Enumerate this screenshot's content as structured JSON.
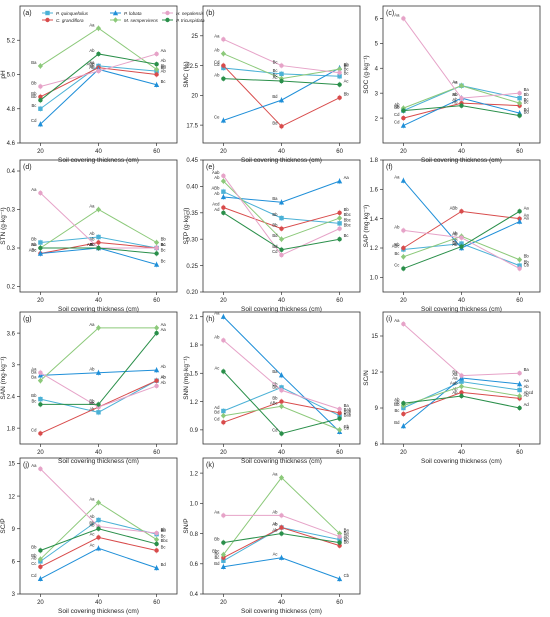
{
  "legend": [
    {
      "name": "P. quinquefolius",
      "color": "#4bb1d6",
      "marker": "square"
    },
    {
      "name": "C. grandiflora",
      "color": "#d84b4b",
      "marker": "circle"
    },
    {
      "name": "P. lobata",
      "color": "#1f8fd8",
      "marker": "triangle"
    },
    {
      "name": "M. sempervirens",
      "color": "#8cc97a",
      "marker": "diamond"
    },
    {
      "name": "H. nepalensis",
      "color": "#e6a3c8",
      "marker": "circle"
    },
    {
      "name": "P. tricuspidata",
      "color": "#2a8f4a",
      "marker": "circle"
    }
  ],
  "chart_data": [
    {
      "panel": "(a)",
      "type": "line",
      "xlabel": "Soil covering thickness (cm)",
      "ylabel": "pH",
      "x": [
        20,
        40,
        60
      ],
      "ylim": [
        4.6,
        5.4
      ],
      "yticks": [
        4.6,
        4.8,
        5.0,
        5.2
      ],
      "series": [
        {
          "name": "P. quinquefolius",
          "values": [
            4.8,
            5.05,
            5.02
          ],
          "labels": [
            "Bc",
            "Aa",
            "Bb"
          ]
        },
        {
          "name": "C. grandiflora",
          "values": [
            4.87,
            5.04,
            5.0
          ],
          "labels": [
            "Bb",
            "ABb",
            "Ab"
          ]
        },
        {
          "name": "P. lobata",
          "values": [
            4.71,
            5.03,
            4.94
          ],
          "labels": [
            "Cd",
            "Ab",
            "Bc"
          ]
        },
        {
          "name": "M. sempervirens",
          "values": [
            5.05,
            5.27,
            5.03
          ],
          "labels": [
            "Ba",
            "Aa",
            "Bb"
          ]
        },
        {
          "name": "H. nepalensis",
          "values": [
            4.93,
            5.02,
            5.12
          ],
          "labels": [
            "Bb",
            "Ab",
            "Aa"
          ]
        },
        {
          "name": "P. tricuspidata",
          "values": [
            4.85,
            5.12,
            5.06
          ],
          "labels": [
            "Bb",
            "Ab",
            "Ab"
          ]
        }
      ]
    },
    {
      "panel": "(b)",
      "type": "line",
      "xlabel": "Soil covering thickness (cm)",
      "ylabel": "SMC (%)",
      "x": [
        20,
        40,
        60
      ],
      "ylim": [
        16,
        27.5
      ],
      "yticks": [
        17.5,
        20.0,
        22.5,
        25.0
      ],
      "series": [
        {
          "name": "P. quinquefolius",
          "values": [
            22.3,
            21.8,
            21.6
          ],
          "labels": [
            "Cd",
            "Bc",
            "Bc"
          ]
        },
        {
          "name": "C. grandiflora",
          "values": [
            22.5,
            17.4,
            19.8
          ],
          "labels": [
            "Cd",
            "Bd",
            "Bb"
          ]
        },
        {
          "name": "P. lobata",
          "values": [
            17.9,
            19.6,
            22.3
          ],
          "labels": [
            "Ce",
            "Bd",
            "Bb"
          ]
        },
        {
          "name": "M. sempervirens",
          "values": [
            23.5,
            21.4,
            22.2
          ],
          "labels": [
            "Ab",
            "Bc",
            "Bc"
          ]
        },
        {
          "name": "H. nepalensis",
          "values": [
            24.7,
            22.5,
            21.9
          ],
          "labels": [
            "Aa",
            "Bc",
            "Bc"
          ]
        },
        {
          "name": "P. tricuspidata",
          "values": [
            21.4,
            21.2,
            20.9
          ],
          "labels": [
            "Ab",
            "Ac",
            "Ac"
          ]
        }
      ]
    },
    {
      "panel": "(c)",
      "type": "line",
      "xlabel": "Soil covering thickness (cm)",
      "ylabel": "SOC (g·kg⁻¹)",
      "x": [
        20,
        40,
        60
      ],
      "ylim": [
        1,
        6.5
      ],
      "yticks": [
        2,
        3,
        4,
        5,
        6
      ],
      "series": [
        {
          "name": "P. quinquefolius",
          "values": [
            2.3,
            3.3,
            2.8
          ],
          "labels": [
            "Bb",
            "Aa",
            "Bb"
          ]
        },
        {
          "name": "C. grandiflora",
          "values": [
            2.0,
            2.6,
            2.5
          ],
          "labels": [
            "Cd",
            "Ab",
            "Bc"
          ]
        },
        {
          "name": "P. lobata",
          "values": [
            1.7,
            2.8,
            2.2
          ],
          "labels": [
            "Cd",
            "Ab",
            "Bd"
          ]
        },
        {
          "name": "M. sempervirens",
          "values": [
            2.4,
            3.3,
            2.6
          ],
          "labels": [
            "Ab",
            "Aa",
            "Bc"
          ]
        },
        {
          "name": "H. nepalensis",
          "values": [
            6.0,
            2.8,
            3.0
          ],
          "labels": [
            "Aa",
            "Bb",
            "Ba"
          ]
        },
        {
          "name": "P. tricuspidata",
          "values": [
            2.3,
            2.5,
            2.1
          ],
          "labels": [
            "Ab",
            "Ab",
            "Bd"
          ]
        }
      ]
    },
    {
      "panel": "(d)",
      "type": "line",
      "xlabel": "Soil covering thickness (cm)",
      "ylabel": "STN (g·kg⁻¹)",
      "x": [
        20,
        40,
        60
      ],
      "ylim": [
        0.2,
        0.44
      ],
      "yticks": [
        0.21,
        0.28,
        0.35,
        0.42
      ],
      "series": [
        {
          "name": "P. quinquefolius",
          "values": [
            0.29,
            0.3,
            0.28
          ],
          "labels": [
            "Bb",
            "Ab",
            "Bc"
          ]
        },
        {
          "name": "C. grandiflora",
          "values": [
            0.27,
            0.29,
            0.28
          ],
          "labels": [
            "ABc",
            "Ab",
            "Bc"
          ]
        },
        {
          "name": "P. lobata",
          "values": [
            0.27,
            0.28,
            0.25
          ],
          "labels": [
            "Bc",
            "Ab",
            "Bc"
          ]
        },
        {
          "name": "M. sempervirens",
          "values": [
            0.28,
            0.35,
            0.29
          ],
          "labels": [
            "Bb",
            "Aa",
            "Bb"
          ]
        },
        {
          "name": "H. nepalensis",
          "values": [
            0.38,
            0.28,
            0.28
          ],
          "labels": [
            "Aa",
            "Bc",
            "Bc"
          ]
        },
        {
          "name": "P. tricuspidata",
          "values": [
            0.28,
            0.28,
            0.27
          ],
          "labels": [
            "Aa",
            "ABc",
            "Bc"
          ]
        }
      ]
    },
    {
      "panel": "(e)",
      "type": "line",
      "xlabel": "Soil covering thickness (cm)",
      "ylabel": "STP (g·kg⁻¹)",
      "x": [
        20,
        40,
        60
      ],
      "ylim": [
        0.2,
        0.45
      ],
      "yticks": [
        0.2,
        0.25,
        0.3,
        0.35,
        0.4,
        0.45
      ],
      "series": [
        {
          "name": "P. quinquefolius",
          "values": [
            0.39,
            0.34,
            0.33
          ],
          "labels": [
            "ABb",
            "Bb",
            "Bbc"
          ]
        },
        {
          "name": "C. grandiflora",
          "values": [
            0.36,
            0.32,
            0.35
          ],
          "labels": [
            "Acd",
            "Bb",
            "Bb"
          ]
        },
        {
          "name": "P. lobata",
          "values": [
            0.38,
            0.37,
            0.41
          ],
          "labels": [
            "Ab",
            "Ba",
            "Aa"
          ]
        },
        {
          "name": "M. sempervirens",
          "values": [
            0.41,
            0.3,
            0.34
          ],
          "labels": [
            "Ab",
            "Bd",
            "Bbc"
          ]
        },
        {
          "name": "H. nepalensis",
          "values": [
            0.42,
            0.27,
            0.32
          ],
          "labels": [
            "Aab",
            "Cd",
            "Bbc"
          ]
        },
        {
          "name": "P. tricuspidata",
          "values": [
            0.35,
            0.28,
            0.3
          ],
          "labels": [
            "Ad",
            "Bd",
            "Bc"
          ]
        }
      ]
    },
    {
      "panel": "(f)",
      "type": "line",
      "xlabel": "Soil covering thickness (cm)",
      "ylabel": "SAP (mg·kg⁻¹)",
      "x": [
        20,
        40,
        60
      ],
      "ylim": [
        0.9,
        1.8
      ],
      "yticks": [
        1.0,
        1.2,
        1.4,
        1.6,
        1.8
      ],
      "series": [
        {
          "name": "P. quinquefolius",
          "values": [
            1.19,
            1.23,
            1.08
          ],
          "labels": [
            "ABc",
            "Bb",
            "Bb"
          ]
        },
        {
          "name": "C. grandiflora",
          "values": [
            1.2,
            1.45,
            1.4
          ],
          "labels": [
            "Bb",
            "ABb",
            "Aa"
          ]
        },
        {
          "name": "P. lobata",
          "values": [
            1.66,
            1.2,
            1.38
          ],
          "labels": [
            "Aa",
            "Ab",
            "Aa"
          ]
        },
        {
          "name": "M. sempervirens",
          "values": [
            1.14,
            1.28,
            1.12
          ],
          "labels": [
            "Bc",
            "Ab",
            "Bb"
          ]
        },
        {
          "name": "H. nepalensis",
          "values": [
            1.32,
            1.27,
            1.06
          ],
          "labels": [
            "Ab",
            "Ab",
            "Cb"
          ]
        },
        {
          "name": "P. tricuspidata",
          "values": [
            1.06,
            1.21,
            1.45
          ],
          "labels": [
            "Cc",
            "Bb",
            "Aa"
          ]
        }
      ]
    },
    {
      "panel": "(g)",
      "type": "line",
      "xlabel": "Soil covering thickness (cm)",
      "ylabel": "SAN (mg·kg⁻¹)",
      "x": [
        20,
        40,
        60
      ],
      "ylim": [
        1.5,
        4.0
      ],
      "yticks": [
        1.8,
        2.4,
        3.0,
        3.6
      ],
      "series": [
        {
          "name": "P. quinquefolius",
          "values": [
            2.35,
            2.1,
            2.7
          ],
          "labels": [
            "Bb",
            "Ab",
            "Ab"
          ]
        },
        {
          "name": "C. grandiflora",
          "values": [
            1.7,
            2.2,
            2.7
          ],
          "labels": [
            "Cd",
            "Bb",
            "Ab"
          ]
        },
        {
          "name": "P. lobata",
          "values": [
            2.8,
            2.85,
            2.9
          ],
          "labels": [
            "Ba",
            "Ab",
            "Ab"
          ]
        },
        {
          "name": "M. sempervirens",
          "values": [
            2.7,
            3.7,
            3.7
          ],
          "labels": [
            "Ba",
            "Aa",
            "Aa"
          ]
        },
        {
          "name": "H. nepalensis",
          "values": [
            2.85,
            2.2,
            2.6
          ],
          "labels": [
            "Aa",
            "Bb",
            "Ab"
          ]
        },
        {
          "name": "P. tricuspidata",
          "values": [
            2.25,
            2.25,
            3.6
          ],
          "labels": [
            "Bc",
            "Bb",
            "Aa"
          ]
        }
      ]
    },
    {
      "panel": "(h)",
      "type": "line",
      "xlabel": "Soil covering thickness (cm)",
      "ylabel": "SNN (mg·kg⁻¹)",
      "x": [
        20,
        40,
        60
      ],
      "ylim": [
        0.75,
        2.15
      ],
      "yticks": [
        0.9,
        1.2,
        1.5,
        1.8,
        2.1
      ],
      "series": [
        {
          "name": "P. quinquefolius",
          "values": [
            1.1,
            1.35,
            1.05
          ],
          "labels": [
            "Ad",
            "Bb",
            "Bab"
          ]
        },
        {
          "name": "C. grandiflora",
          "values": [
            0.98,
            1.2,
            1.08
          ],
          "labels": [
            "Cd",
            "Bb",
            "Bab"
          ]
        },
        {
          "name": "P. lobata",
          "values": [
            2.1,
            1.48,
            0.88
          ],
          "labels": [
            "Aa",
            "Ba",
            "Cb"
          ]
        },
        {
          "name": "M. sempervirens",
          "values": [
            1.05,
            1.15,
            0.9
          ],
          "labels": [
            "Bd",
            "ABc",
            "Cb"
          ]
        },
        {
          "name": "H. nepalensis",
          "values": [
            1.85,
            1.32,
            1.12
          ],
          "labels": [
            "Ab",
            "Bb",
            "Ba"
          ]
        },
        {
          "name": "P. tricuspidata",
          "values": [
            1.52,
            0.86,
            1.02
          ],
          "labels": [
            "Ac",
            "Cd",
            "Bab"
          ]
        }
      ]
    },
    {
      "panel": "(i)",
      "type": "line",
      "xlabel": "Soil covering thickness (cm)",
      "ylabel": "SC/N",
      "x": [
        20,
        40,
        60
      ],
      "ylim": [
        6,
        17
      ],
      "yticks": [
        6,
        9,
        12,
        15
      ],
      "series": [
        {
          "name": "P. quinquefolius",
          "values": [
            9.0,
            11.2,
            10.5
          ],
          "labels": [
            "Bb",
            "Aa",
            "Ab"
          ]
        },
        {
          "name": "C. grandiflora",
          "values": [
            8.5,
            10.3,
            9.8
          ],
          "labels": [
            "Bc",
            "Ab",
            "Ab"
          ]
        },
        {
          "name": "P. lobata",
          "values": [
            7.5,
            11.5,
            11.0
          ],
          "labels": [
            "Bd",
            "Aa",
            "Aa"
          ]
        },
        {
          "name": "M. sempervirens",
          "values": [
            9.2,
            10.8,
            10.0
          ],
          "labels": [
            "Ab",
            "Aab",
            "Abcd"
          ]
        },
        {
          "name": "H. nepalensis",
          "values": [
            16.0,
            11.7,
            11.9
          ],
          "labels": [
            "Aa",
            "Ba",
            "Ba"
          ]
        },
        {
          "name": "P. tricuspidata",
          "values": [
            9.4,
            10.0,
            9.0
          ],
          "labels": [
            "Ab",
            "Ab",
            "Ad"
          ]
        }
      ]
    },
    {
      "panel": "(j)",
      "type": "line",
      "xlabel": "Soil covering thickness (cm)",
      "ylabel": "SC/P",
      "x": [
        20,
        40,
        60
      ],
      "ylim": [
        3,
        15.5
      ],
      "yticks": [
        3,
        6,
        9,
        12,
        15
      ],
      "series": [
        {
          "name": "P. quinquefolius",
          "values": [
            6.0,
            9.8,
            8.5
          ],
          "labels": [
            "Ab",
            "Ab",
            "Bb"
          ]
        },
        {
          "name": "C. grandiflora",
          "values": [
            5.5,
            8.2,
            7.0
          ],
          "labels": [
            "Cc",
            "Ac",
            "Bc"
          ]
        },
        {
          "name": "P. lobata",
          "values": [
            4.4,
            7.2,
            5.4
          ],
          "labels": [
            "Cd",
            "Ac",
            "Bd"
          ]
        },
        {
          "name": "M. sempervirens",
          "values": [
            6.2,
            11.4,
            8.0
          ],
          "labels": [
            "Bb",
            "Aa",
            "Bc"
          ]
        },
        {
          "name": "H. nepalensis",
          "values": [
            14.5,
            9.2,
            8.6
          ],
          "labels": [
            "Aa",
            "Bb",
            "Bb"
          ]
        },
        {
          "name": "P. tricuspidata",
          "values": [
            7.0,
            9.0,
            7.6
          ],
          "labels": [
            "Bb",
            "Ab",
            "Bbc"
          ]
        }
      ]
    },
    {
      "panel": "(k)",
      "type": "line",
      "xlabel": "Soil covering thickness (cm)",
      "ylabel": "SN/P",
      "x": [
        20,
        40,
        60
      ],
      "ylim": [
        0.4,
        1.3
      ],
      "yticks": [
        0.4,
        0.6,
        0.8,
        1.0,
        1.2
      ],
      "series": [
        {
          "name": "P. quinquefolius",
          "values": [
            0.62,
            0.84,
            0.76
          ],
          "labels": [
            "Bc",
            "Ab",
            "Ab"
          ]
        },
        {
          "name": "C. grandiflora",
          "values": [
            0.64,
            0.84,
            0.72
          ],
          "labels": [
            "Bc",
            "Ab",
            "Bb"
          ]
        },
        {
          "name": "P. lobata",
          "values": [
            0.58,
            0.64,
            0.5
          ],
          "labels": [
            "Bd",
            "Ac",
            "Cb"
          ]
        },
        {
          "name": "M. sempervirens",
          "values": [
            0.66,
            1.17,
            0.8
          ],
          "labels": [
            "Bbc",
            "Aa",
            "Ba"
          ]
        },
        {
          "name": "H. nepalensis",
          "values": [
            0.92,
            0.92,
            0.78
          ],
          "labels": [
            "Aa",
            "Ab",
            "Ba"
          ]
        },
        {
          "name": "P. tricuspidata",
          "values": [
            0.74,
            0.8,
            0.74
          ],
          "labels": [
            "Bb",
            "Ab",
            "Bb"
          ]
        }
      ]
    }
  ]
}
